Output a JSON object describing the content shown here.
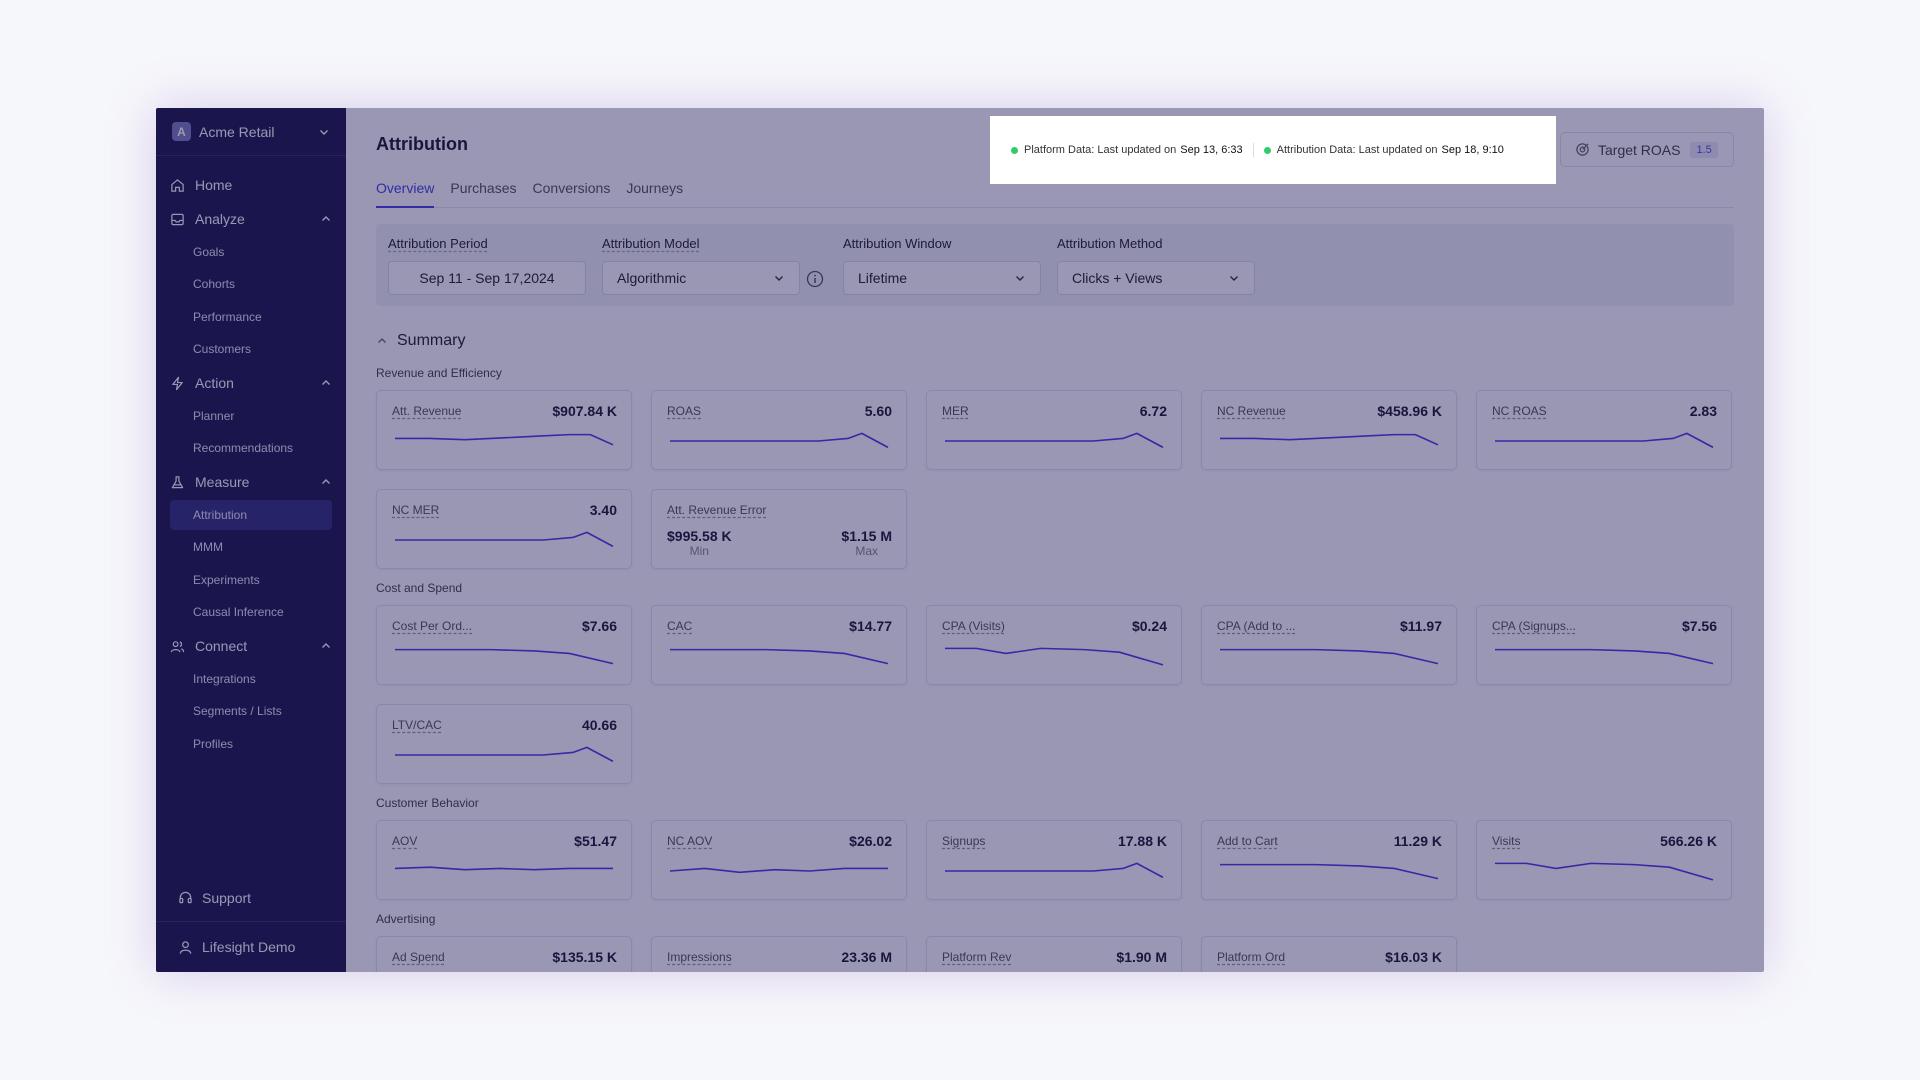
{
  "org": {
    "logo_letter": "A",
    "name": "Acme Retail"
  },
  "nav": {
    "home": "Home",
    "analyze": {
      "label": "Analyze",
      "items": [
        "Goals",
        "Cohorts",
        "Performance",
        "Customers"
      ]
    },
    "action": {
      "label": "Action",
      "items": [
        "Planner",
        "Recommendations"
      ]
    },
    "measure": {
      "label": "Measure",
      "items": [
        "Attribution",
        "MMM",
        "Experiments",
        "Causal Inference"
      ]
    },
    "connect": {
      "label": "Connect",
      "items": [
        "Integrations",
        "Segments / Lists",
        "Profiles"
      ]
    },
    "support": "Support",
    "user": "Lifesight Demo",
    "active_item": "Attribution"
  },
  "header": {
    "title": "Attribution",
    "platform_status": {
      "label": "Platform Data: Last updated on",
      "value": "Sep 13, 6:33"
    },
    "attribution_status": {
      "label": "Attribution Data: Last updated on",
      "value": "Sep 18, 9:10"
    },
    "target_roas": {
      "label": "Target ROAS",
      "value": "1.5"
    }
  },
  "tabs": [
    "Overview",
    "Purchases",
    "Conversions",
    "Journeys"
  ],
  "active_tab": "Overview",
  "filters": {
    "period": {
      "label": "Attribution Period",
      "value": "Sep 11 - Sep 17,2024"
    },
    "model": {
      "label": "Attribution Model",
      "value": "Algorithmic"
    },
    "window": {
      "label": "Attribution Window",
      "value": "Lifetime"
    },
    "method": {
      "label": "Attribution Method",
      "value": "Clicks + Views"
    }
  },
  "summary": {
    "title": "Summary",
    "sections": {
      "revenue": {
        "label": "Revenue and Efficiency",
        "cards": [
          {
            "name": "Att. Revenue",
            "value": "$907.84 K"
          },
          {
            "name": "ROAS",
            "value": "5.60"
          },
          {
            "name": "MER",
            "value": "6.72"
          },
          {
            "name": "NC Revenue",
            "value": "$458.96 K"
          },
          {
            "name": "NC ROAS",
            "value": "2.83"
          },
          {
            "name": "NC MER",
            "value": "3.40"
          }
        ],
        "error_card": {
          "name": "Att. Revenue Error",
          "min_value": "$995.58 K",
          "min_label": "Min",
          "max_value": "$1.15 M",
          "max_label": "Max"
        }
      },
      "cost": {
        "label": "Cost and Spend",
        "cards": [
          {
            "name": "Cost Per Ord...",
            "value": "$7.66"
          },
          {
            "name": "CAC",
            "value": "$14.77"
          },
          {
            "name": "CPA (Visits)",
            "value": "$0.24"
          },
          {
            "name": "CPA (Add to ...",
            "value": "$11.97"
          },
          {
            "name": "CPA (Signups...",
            "value": "$7.56"
          },
          {
            "name": "LTV/CAC",
            "value": "40.66"
          }
        ]
      },
      "behavior": {
        "label": "Customer Behavior",
        "cards": [
          {
            "name": "AOV",
            "value": "$51.47"
          },
          {
            "name": "NC AOV",
            "value": "$26.02"
          },
          {
            "name": "Signups",
            "value": "17.88 K"
          },
          {
            "name": "Add to Cart",
            "value": "11.29 K"
          },
          {
            "name": "Visits",
            "value": "566.26 K"
          }
        ]
      },
      "advertising": {
        "label": "Advertising",
        "cards": [
          {
            "name": "Ad Spend",
            "value": "$135.15 K"
          },
          {
            "name": "Impressions",
            "value": "23.36 M"
          },
          {
            "name": "Platform Rev",
            "value": "$1.90 M"
          },
          {
            "name": "Platform Ord",
            "value": "$16.03 K"
          }
        ]
      }
    }
  },
  "colors": {
    "sidebar": "#1e1a4a",
    "accent": "#4b3fe0",
    "sparkline": "#5a35e8",
    "status_ok": "#2ecc71",
    "overlay": "#161252"
  }
}
